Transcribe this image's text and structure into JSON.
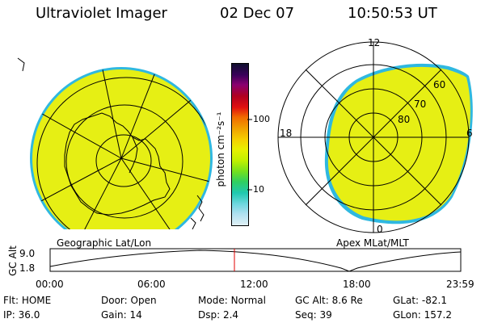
{
  "header": {
    "instrument": "Ultraviolet Imager",
    "date": "02 Dec 07",
    "time": "10:50:53 UT"
  },
  "colorbar": {
    "unit_label": "photon cm⁻²s⁻¹",
    "tick_labels": [
      "100",
      "10"
    ],
    "colors": [
      "#101030",
      "#3a005a",
      "#8a0070",
      "#b00020",
      "#e01010",
      "#f06a00",
      "#f0a000",
      "#f5d000",
      "#e8f000",
      "#c0f000",
      "#70e020",
      "#30d060",
      "#20c8b0",
      "#70d8e0",
      "#b0e0f0",
      "#e0f0f5"
    ]
  },
  "left_panel": {
    "caption": "Geographic Lat/Lon",
    "fill_color": "#e6ef14"
  },
  "right_panel": {
    "caption": "Apex MLat/MLT",
    "mlt_labels": {
      "top": "12",
      "left": "18",
      "right": "6",
      "bottom": "0"
    },
    "lat_labels": [
      "60",
      "70",
      "80"
    ],
    "fill_color": "#e6ef14"
  },
  "altitude_plot": {
    "ylabel": "GC Alt",
    "yticks": [
      "9.0",
      "1.8"
    ],
    "xticks": [
      "00:00",
      "06:00",
      "12:00",
      "18:00",
      "23:59"
    ],
    "marker_color": "#e00000"
  },
  "status": {
    "row1": [
      {
        "key": "Flt:",
        "value": "HOME"
      },
      {
        "key": "Door:",
        "value": "Open"
      },
      {
        "key": "Mode:",
        "value": "Normal"
      },
      {
        "key": "GC Alt:",
        "value": "8.6 Re"
      },
      {
        "key": "GLat:",
        "value": "-82.1"
      }
    ],
    "row2": [
      {
        "key": "IP:",
        "value": "36.0"
      },
      {
        "key": "Gain:",
        "value": "14"
      },
      {
        "key": "Dsp:",
        "value": "2.4"
      },
      {
        "key": "Seq:",
        "value": "39"
      },
      {
        "key": "GLon:",
        "value": "157.2"
      }
    ]
  }
}
